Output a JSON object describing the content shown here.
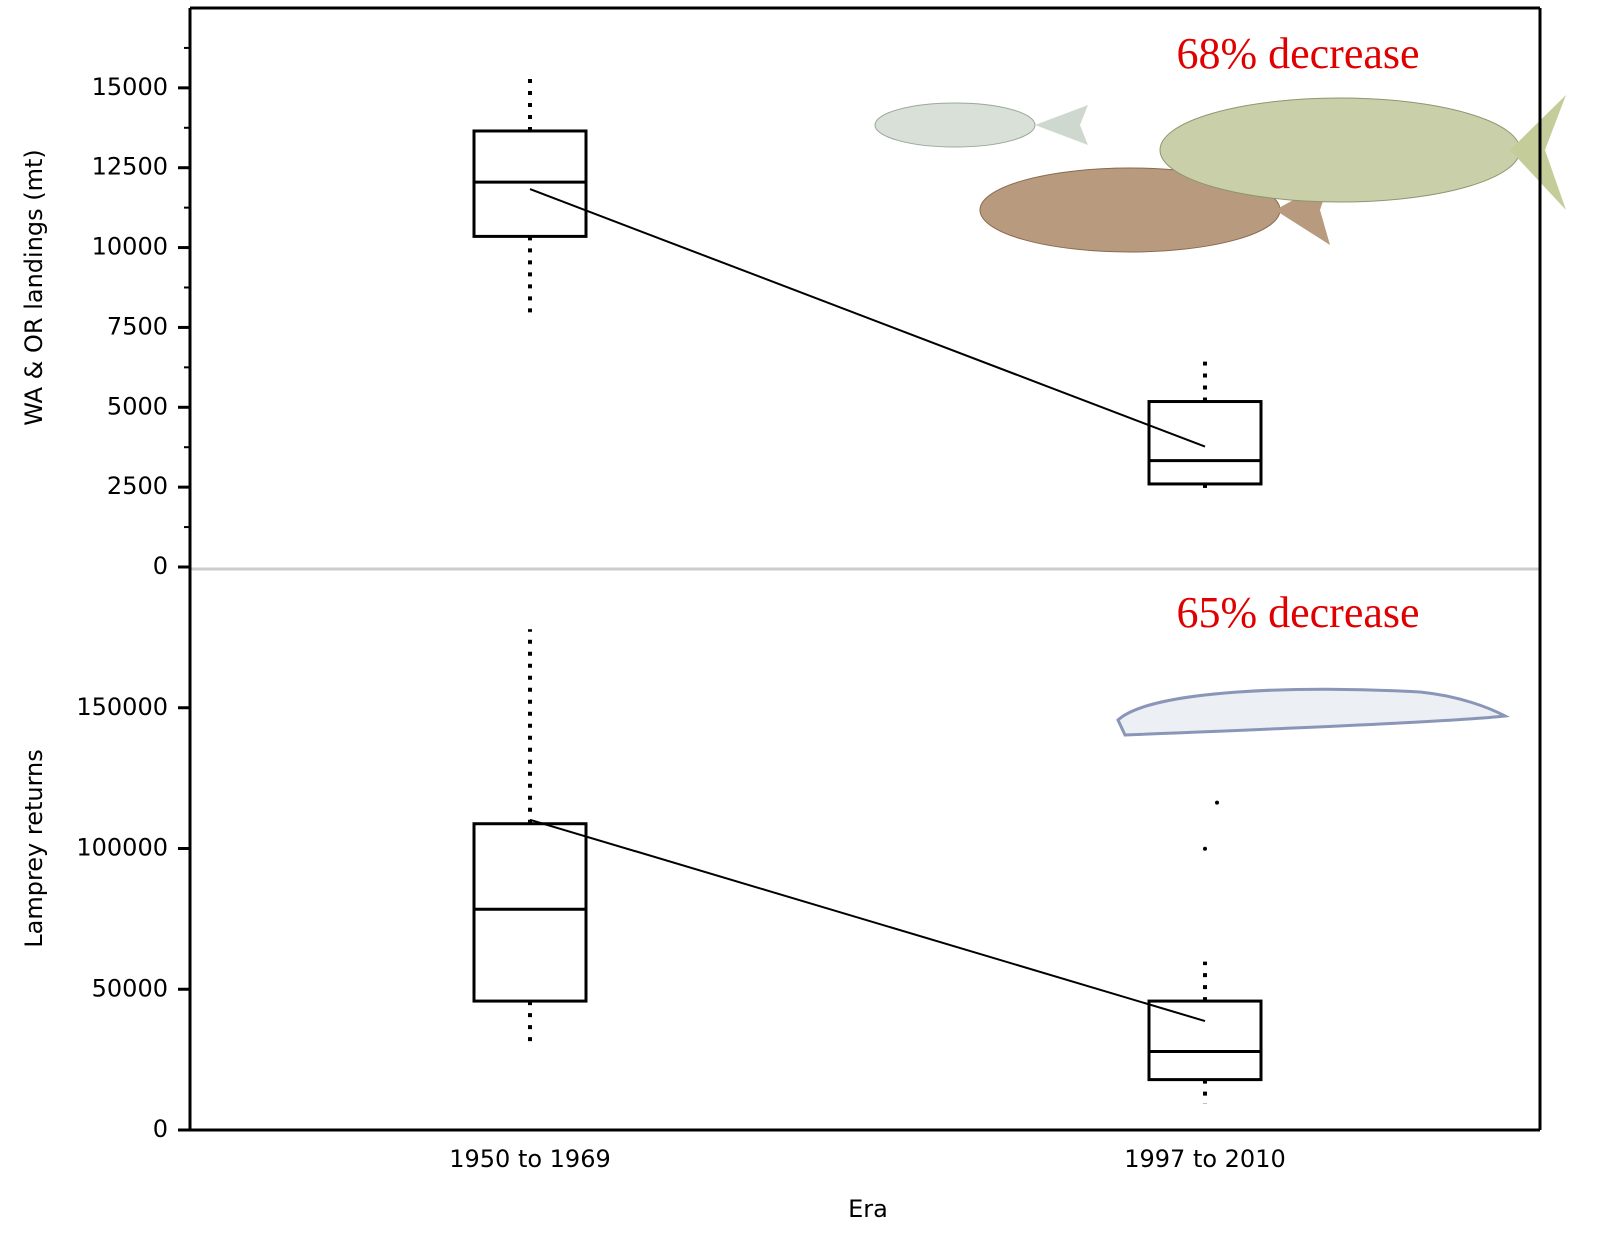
{
  "chart_data": [
    {
      "type": "box",
      "ylabel": "WA & OR landings (mt)",
      "annotation": "68% decrease",
      "ylim": [
        0,
        17500
      ],
      "yticks": [
        0,
        2500,
        5000,
        7500,
        10000,
        12500,
        15000
      ],
      "minor_yticks": [
        1250,
        3750,
        6250,
        8750,
        11250,
        13750,
        16250
      ],
      "boxes": [
        {
          "whisker_low": 7970,
          "q1": 10350,
          "median": 12050,
          "q3": 13650,
          "whisker_high": 15440,
          "mean": 11830
        },
        {
          "whisker_low": 2420,
          "q1": 2600,
          "median": 3330,
          "q3": 5180,
          "whisker_high": 6430,
          "mean": 3770
        }
      ]
    },
    {
      "type": "box",
      "ylabel": "Lamprey returns",
      "annotation": "65% decrease",
      "xlabel": "Era",
      "categories": [
        "1950 to 1969",
        "1997 to 2010"
      ],
      "ylim": [
        0,
        200000
      ],
      "yticks": [
        0,
        50000,
        100000,
        150000
      ],
      "boxes": [
        {
          "whisker_low": 31100,
          "q1": 45800,
          "median": 78400,
          "q3": 108800,
          "whisker_high": 177900,
          "mean": 110200,
          "outliers": []
        },
        {
          "whisker_low": 9300,
          "q1": 17900,
          "median": 27900,
          "q3": 45800,
          "whisker_high": 59800,
          "mean": 38700,
          "outliers": [
            116300,
            99900
          ]
        }
      ]
    }
  ]
}
